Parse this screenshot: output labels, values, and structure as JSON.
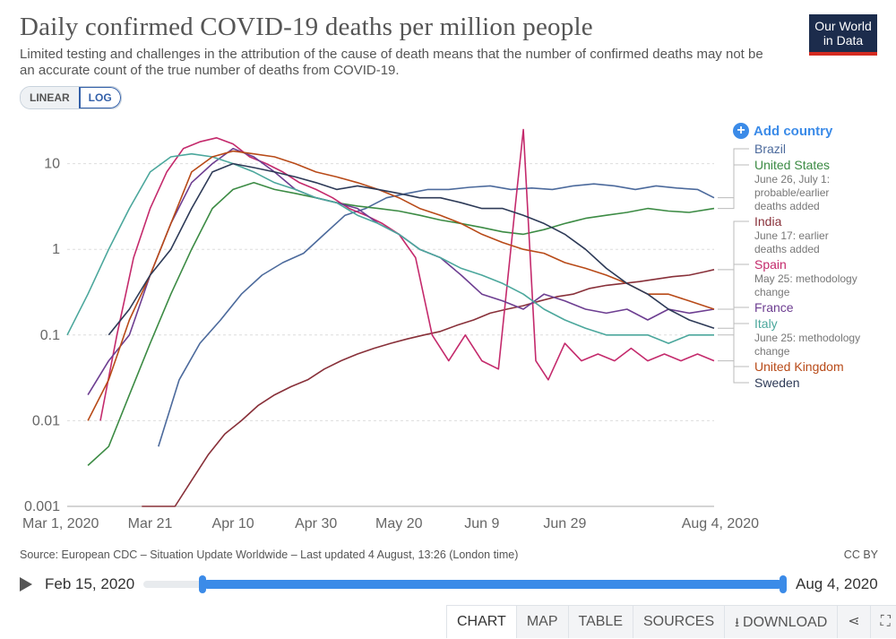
{
  "header": {
    "title": "Daily confirmed COVID-19 deaths per million people",
    "subtitle": "Limited testing and challenges in the attribution of the cause of death means that the number of confirmed deaths may not be an accurate count of the true number of deaths from COVID-19.",
    "logo_line1": "Our World",
    "logo_line2": "in Data"
  },
  "scale_toggle": {
    "linear": "LINEAR",
    "log": "LOG",
    "active": "LOG"
  },
  "add_country": "Add country",
  "footer": {
    "source": "Source: European CDC – Situation Update Worldwide – Last updated 4 August, 13:26 (London time)",
    "license": "CC BY"
  },
  "timeline": {
    "start": "Feb 15, 2020",
    "end": "Aug 4, 2020"
  },
  "tabs": {
    "chart": "CHART",
    "map": "MAP",
    "table": "TABLE",
    "sources": "SOURCES",
    "download": "DOWNLOAD"
  },
  "icons": [
    "plus-circle-icon",
    "play-icon",
    "download-icon",
    "share-icon",
    "fullscreen-icon"
  ],
  "colors": {
    "Brazil": "#4c6a9c",
    "United States": "#3c8b44",
    "India": "#883039",
    "Spain": "#c42a6c",
    "France": "#6d3e91",
    "Italy": "#4ba79c",
    "United Kingdom": "#b84a18",
    "Sweden": "#2d3a57",
    "accent": "#3b8be8"
  },
  "chart_data": {
    "type": "line",
    "scale": "log",
    "ylim": [
      0.001,
      30
    ],
    "yticks": [
      0.001,
      0.01,
      0.1,
      1,
      10
    ],
    "ytick_labels": [
      "0.001",
      "0.01",
      "0.1",
      "1",
      "10"
    ],
    "xlim": [
      "2020-03-01",
      "2020-08-04"
    ],
    "xtick_labels": [
      "Mar 1, 2020",
      "Mar 21",
      "Apr 10",
      "Apr 30",
      "May 20",
      "Jun 9",
      "Jun 29",
      "Aug 4, 2020"
    ],
    "xtick_days": [
      0,
      20,
      40,
      60,
      80,
      100,
      120,
      156
    ],
    "series": [
      {
        "name": "Brazil",
        "x": [
          22,
          27,
          32,
          37,
          42,
          47,
          52,
          57,
          62,
          67,
          72,
          77,
          82,
          87,
          92,
          97,
          102,
          107,
          112,
          117,
          122,
          127,
          132,
          137,
          142,
          147,
          152,
          156
        ],
        "y": [
          0.005,
          0.03,
          0.08,
          0.15,
          0.3,
          0.5,
          0.7,
          0.9,
          1.5,
          2.5,
          3,
          4,
          4.5,
          5,
          5,
          5.3,
          5.5,
          5,
          5.2,
          5,
          5.5,
          5.8,
          5.5,
          5,
          5.5,
          5.2,
          5,
          4
        ]
      },
      {
        "name": "United States",
        "x": [
          5,
          10,
          15,
          20,
          25,
          30,
          35,
          40,
          45,
          50,
          55,
          60,
          65,
          70,
          75,
          80,
          85,
          90,
          95,
          100,
          105,
          110,
          115,
          120,
          125,
          130,
          135,
          140,
          145,
          150,
          156
        ],
        "y": [
          0.003,
          0.005,
          0.02,
          0.08,
          0.3,
          1,
          3,
          5,
          6,
          5,
          4.5,
          4,
          3.5,
          3.2,
          3,
          2.8,
          2.5,
          2.2,
          2,
          1.8,
          1.6,
          1.5,
          1.7,
          2,
          2.3,
          2.5,
          2.7,
          3,
          2.8,
          2.7,
          3
        ]
      },
      {
        "name": "India",
        "x": [
          18,
          22,
          26,
          30,
          34,
          38,
          42,
          46,
          50,
          54,
          58,
          62,
          66,
          70,
          74,
          78,
          82,
          86,
          90,
          94,
          98,
          102,
          106,
          110,
          114,
          118,
          122,
          126,
          130,
          134,
          138,
          142,
          146,
          150,
          154,
          156
        ],
        "y": [
          0.001,
          0.001,
          0.001,
          0.002,
          0.004,
          0.007,
          0.01,
          0.015,
          0.02,
          0.025,
          0.03,
          0.04,
          0.05,
          0.06,
          0.07,
          0.08,
          0.09,
          0.1,
          0.11,
          0.13,
          0.15,
          0.18,
          0.2,
          0.22,
          0.25,
          0.28,
          0.3,
          0.35,
          0.38,
          0.4,
          0.42,
          0.45,
          0.48,
          0.5,
          0.55,
          0.58
        ]
      },
      {
        "name": "Spain",
        "x": [
          8,
          12,
          16,
          20,
          24,
          28,
          32,
          36,
          40,
          44,
          48,
          52,
          56,
          60,
          64,
          68,
          72,
          76,
          80,
          84,
          88,
          92,
          96,
          100,
          104,
          108,
          110,
          113,
          116,
          120,
          124,
          128,
          132,
          136,
          140,
          144,
          148,
          152,
          156
        ],
        "y": [
          0.01,
          0.1,
          0.8,
          3,
          8,
          15,
          18,
          20,
          17,
          12,
          10,
          8,
          6,
          5,
          4,
          3,
          2.5,
          2,
          1.5,
          0.8,
          0.1,
          0.05,
          0.1,
          0.05,
          0.04,
          3,
          25,
          0.05,
          0.03,
          0.08,
          0.05,
          0.06,
          0.05,
          0.07,
          0.05,
          0.06,
          0.05,
          0.06,
          0.05
        ]
      },
      {
        "name": "France",
        "x": [
          5,
          10,
          15,
          20,
          25,
          30,
          35,
          40,
          45,
          50,
          55,
          60,
          65,
          70,
          75,
          80,
          85,
          90,
          95,
          100,
          105,
          110,
          115,
          120,
          125,
          130,
          135,
          140,
          145,
          150,
          156
        ],
        "y": [
          0.02,
          0.05,
          0.1,
          0.5,
          2,
          6,
          10,
          15,
          12,
          8,
          5,
          4,
          3.5,
          3,
          2,
          1.5,
          1,
          0.8,
          0.5,
          0.3,
          0.25,
          0.2,
          0.3,
          0.25,
          0.2,
          0.18,
          0.2,
          0.15,
          0.2,
          0.18,
          0.2
        ]
      },
      {
        "name": "Italy",
        "x": [
          0,
          5,
          10,
          15,
          20,
          25,
          30,
          35,
          40,
          45,
          50,
          55,
          60,
          65,
          70,
          75,
          80,
          85,
          90,
          95,
          100,
          105,
          110,
          115,
          120,
          125,
          130,
          135,
          140,
          145,
          150,
          156
        ],
        "y": [
          0.1,
          0.3,
          1,
          3,
          8,
          12,
          13,
          12,
          10,
          8,
          6,
          5,
          4,
          3.5,
          2.5,
          2,
          1.5,
          1,
          0.8,
          0.6,
          0.5,
          0.4,
          0.3,
          0.2,
          0.15,
          0.12,
          0.1,
          0.1,
          0.1,
          0.08,
          0.1,
          0.1
        ]
      },
      {
        "name": "United Kingdom",
        "x": [
          5,
          10,
          15,
          20,
          25,
          30,
          35,
          40,
          45,
          50,
          55,
          60,
          65,
          70,
          75,
          80,
          85,
          90,
          95,
          100,
          105,
          110,
          115,
          120,
          125,
          130,
          135,
          140,
          145,
          150,
          156
        ],
        "y": [
          0.01,
          0.03,
          0.15,
          0.5,
          2,
          8,
          12,
          14,
          13,
          12,
          10,
          8,
          7,
          6,
          5,
          4,
          3,
          2.5,
          2,
          1.5,
          1.2,
          1,
          0.9,
          0.7,
          0.6,
          0.5,
          0.4,
          0.3,
          0.3,
          0.25,
          0.2
        ]
      },
      {
        "name": "Sweden",
        "x": [
          10,
          15,
          20,
          25,
          30,
          35,
          40,
          45,
          50,
          55,
          60,
          65,
          70,
          75,
          80,
          85,
          90,
          95,
          100,
          105,
          110,
          115,
          120,
          125,
          130,
          135,
          140,
          145,
          150,
          156
        ],
        "y": [
          0.1,
          0.2,
          0.5,
          1,
          3,
          8,
          10,
          9,
          8,
          7,
          6,
          5,
          5.5,
          5,
          4.5,
          4,
          4,
          3.5,
          3,
          3,
          2.5,
          2,
          1.5,
          1,
          0.6,
          0.4,
          0.3,
          0.2,
          0.15,
          0.12
        ]
      }
    ],
    "legend": [
      {
        "name": "Brazil"
      },
      {
        "name": "United States",
        "note": "June 26, July 1: probable/earlier deaths added"
      },
      {
        "name": "India",
        "note": "June 17: earlier deaths added"
      },
      {
        "name": "Spain",
        "note": "May 25: methodology change"
      },
      {
        "name": "France"
      },
      {
        "name": "Italy",
        "note": "June 25: methodology change"
      },
      {
        "name": "United Kingdom"
      },
      {
        "name": "Sweden"
      }
    ]
  }
}
